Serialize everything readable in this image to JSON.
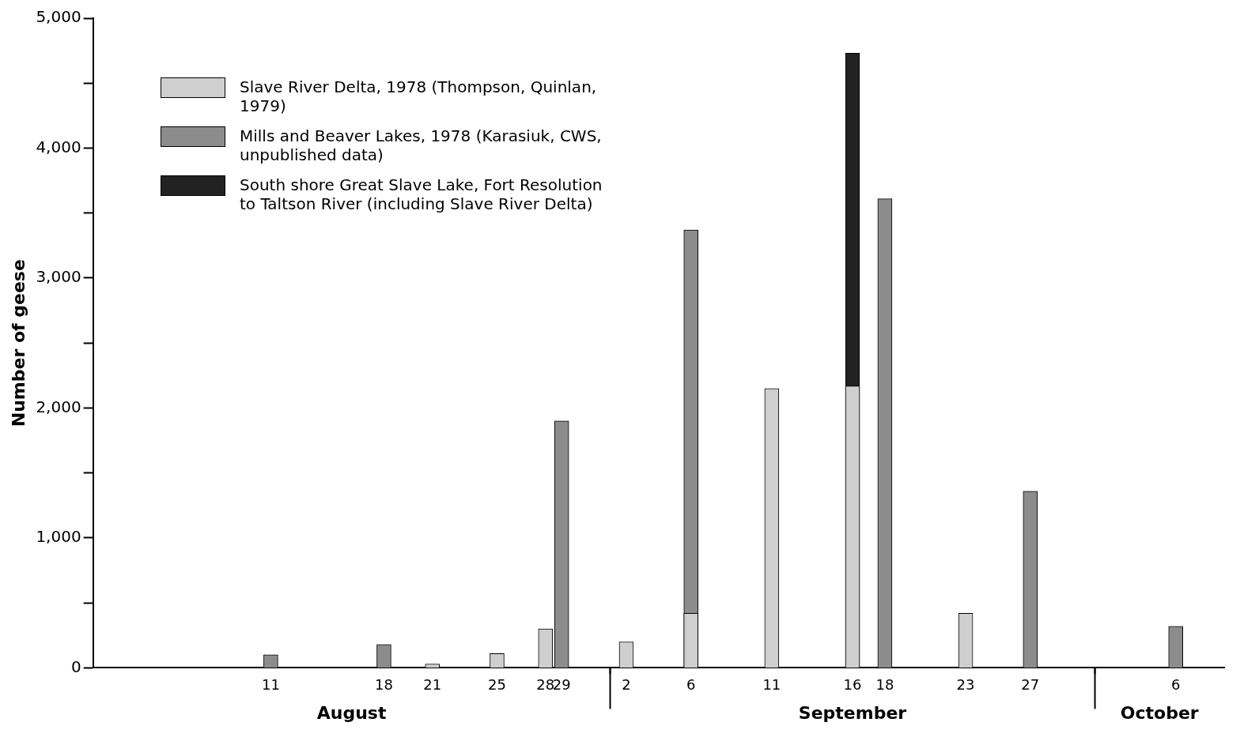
{
  "chart_data": {
    "type": "bar",
    "ylabel": "Number of geese",
    "xlim": [
      "--07-31",
      "--10-09"
    ],
    "xticks": [
      {
        "value": "--08-11",
        "label": "11"
      },
      {
        "value": "--08-18",
        "label": "18"
      },
      {
        "value": "--08-21",
        "label": "21"
      },
      {
        "value": "--08-25",
        "label": "25"
      },
      {
        "value": "--08-28",
        "label": "28"
      },
      {
        "value": "--08-29",
        "label": "29"
      },
      {
        "value": "--09-01",
        "label": null
      },
      {
        "value": "--09-02",
        "label": "2"
      },
      {
        "value": "--09-06",
        "label": "6"
      },
      {
        "value": "--09-11",
        "label": "11"
      },
      {
        "value": "--09-16",
        "label": "16"
      },
      {
        "value": "--09-18",
        "label": "18"
      },
      {
        "value": "--09-23",
        "label": "23"
      },
      {
        "value": "--09-27",
        "label": "27"
      },
      {
        "value": "--10-01",
        "label": null
      },
      {
        "value": "--10-06",
        "label": "6"
      }
    ],
    "ylim": [
      0,
      5000
    ],
    "yticks": [
      {
        "value": 0,
        "label": "0"
      },
      {
        "value": 500,
        "label": null
      },
      {
        "value": 1000,
        "label": "1,000"
      },
      {
        "value": 1500,
        "label": null
      },
      {
        "value": 2000,
        "label": "2,000"
      },
      {
        "value": 2500,
        "label": null
      },
      {
        "value": 3000,
        "label": "3,000"
      },
      {
        "value": 3500,
        "label": null
      },
      {
        "value": 4000,
        "label": "4,000"
      },
      {
        "value": 4500,
        "label": null
      },
      {
        "value": 5000,
        "label": "5,000"
      }
    ],
    "legend": "top left",
    "grid": false,
    "annotations": [
      "August",
      "September",
      "October"
    ],
    "series": [
      {
        "name": "Slave River Delta, 1978 (Thompson, Quinlan, 1979)",
        "color": "#cfcfcf",
        "x": [
          "--08-21",
          "--08-25",
          "--08-28",
          "--09-02",
          "--09-06",
          "--09-11",
          "--09-16",
          "--09-23"
        ],
        "values": [
          30,
          110,
          300,
          200,
          420,
          2150,
          2170,
          420
        ]
      },
      {
        "name": "Mills and Beaver Lakes, 1978 (Karasiuk, CWS, unpublished data)",
        "color": "#8c8c8c",
        "x": [
          "--08-11",
          "--08-18",
          "--08-29",
          "--09-06",
          "--09-18",
          "--09-27",
          "--10-06"
        ],
        "values": [
          100,
          180,
          1900,
          3370,
          3610,
          1360,
          320
        ]
      },
      {
        "name": "South shore Great Slave Lake, Fort Resolution to Taltson River (including Slave River Delta)",
        "color": "#222222",
        "x": [
          "--09-16"
        ],
        "values": [
          4730
        ]
      }
    ]
  }
}
